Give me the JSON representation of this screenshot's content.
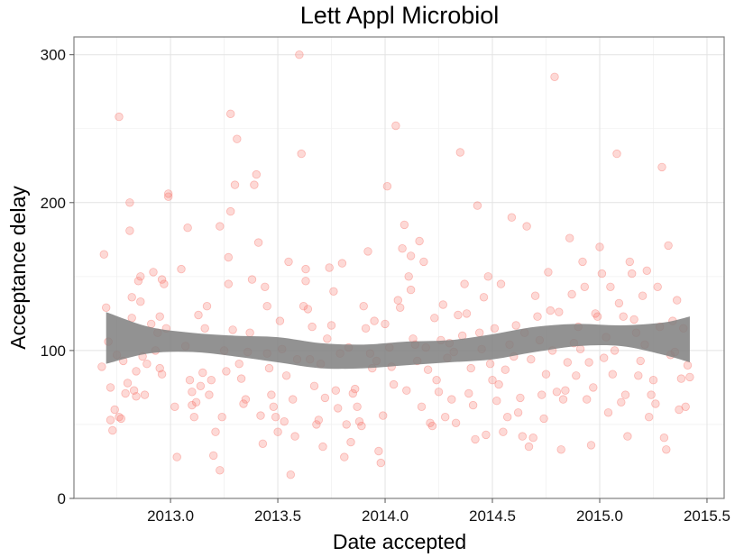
{
  "chart_data": {
    "type": "scatter",
    "title": "Lett Appl Microbiol",
    "xlabel": "Date accepted",
    "ylabel": "Acceptance delay",
    "xlim": [
      2012.55,
      2015.58
    ],
    "ylim": [
      0,
      312
    ],
    "x_ticks": [
      2013.0,
      2013.5,
      2014.0,
      2014.5,
      2015.0,
      2015.5
    ],
    "x_tick_labels": [
      "2013.0",
      "2013.5",
      "2014.0",
      "2014.5",
      "2015.0",
      "2015.5"
    ],
    "y_ticks": [
      0,
      100,
      200,
      300
    ],
    "y_tick_labels": [
      "0",
      "100",
      "200",
      "300"
    ],
    "grid": true,
    "point_color": "#F8766D",
    "band_color": "#7f7f7f",
    "smooth_band": {
      "x": [
        2012.7,
        2012.9,
        2013.1,
        2013.3,
        2013.5,
        2013.7,
        2013.9,
        2014.1,
        2014.3,
        2014.5,
        2014.7,
        2014.9,
        2015.1,
        2015.3,
        2015.42
      ],
      "lower": [
        91,
        98,
        99,
        96,
        92,
        88,
        88,
        90,
        92,
        94,
        99,
        103,
        103,
        97,
        92
      ],
      "upper": [
        126,
        116,
        112,
        110,
        109,
        105,
        104,
        106,
        107,
        111,
        116,
        118,
        117,
        119,
        123
      ]
    },
    "points": [
      [
        2012.68,
        89
      ],
      [
        2012.69,
        165
      ],
      [
        2012.7,
        129
      ],
      [
        2012.71,
        106
      ],
      [
        2012.72,
        75
      ],
      [
        2012.72,
        53
      ],
      [
        2012.73,
        46
      ],
      [
        2012.74,
        60
      ],
      [
        2012.75,
        97
      ],
      [
        2012.76,
        258
      ],
      [
        2012.76,
        55
      ],
      [
        2012.77,
        54
      ],
      [
        2012.78,
        93
      ],
      [
        2012.79,
        71
      ],
      [
        2012.8,
        78
      ],
      [
        2012.81,
        200
      ],
      [
        2012.81,
        181
      ],
      [
        2012.82,
        122
      ],
      [
        2012.82,
        136
      ],
      [
        2012.83,
        73
      ],
      [
        2012.84,
        86
      ],
      [
        2012.84,
        69
      ],
      [
        2012.85,
        147
      ],
      [
        2012.86,
        150
      ],
      [
        2012.86,
        133
      ],
      [
        2012.87,
        96
      ],
      [
        2012.88,
        70
      ],
      [
        2012.89,
        91
      ],
      [
        2012.91,
        118
      ],
      [
        2012.92,
        153
      ],
      [
        2012.93,
        100
      ],
      [
        2012.94,
        112
      ],
      [
        2012.95,
        123
      ],
      [
        2012.95,
        88
      ],
      [
        2012.96,
        84
      ],
      [
        2012.96,
        148
      ],
      [
        2012.97,
        145
      ],
      [
        2012.98,
        115
      ],
      [
        2012.99,
        206
      ],
      [
        2012.99,
        204
      ],
      [
        2013.02,
        62
      ],
      [
        2013.03,
        28
      ],
      [
        2013.05,
        155
      ],
      [
        2013.07,
        103
      ],
      [
        2013.08,
        183
      ],
      [
        2013.09,
        80
      ],
      [
        2013.1,
        63
      ],
      [
        2013.1,
        72
      ],
      [
        2013.11,
        55
      ],
      [
        2013.12,
        65
      ],
      [
        2013.13,
        124
      ],
      [
        2013.14,
        76
      ],
      [
        2013.15,
        85
      ],
      [
        2013.16,
        115
      ],
      [
        2013.17,
        130
      ],
      [
        2013.18,
        70
      ],
      [
        2013.19,
        80
      ],
      [
        2013.2,
        29
      ],
      [
        2013.21,
        45
      ],
      [
        2013.23,
        19
      ],
      [
        2013.23,
        184
      ],
      [
        2013.24,
        55
      ],
      [
        2013.25,
        100
      ],
      [
        2013.26,
        86
      ],
      [
        2013.27,
        163
      ],
      [
        2013.27,
        145
      ],
      [
        2013.28,
        260
      ],
      [
        2013.28,
        194
      ],
      [
        2013.29,
        114
      ],
      [
        2013.3,
        212
      ],
      [
        2013.31,
        243
      ],
      [
        2013.32,
        91
      ],
      [
        2013.33,
        81
      ],
      [
        2013.34,
        64
      ],
      [
        2013.35,
        67
      ],
      [
        2013.36,
        99
      ],
      [
        2013.37,
        112
      ],
      [
        2013.38,
        148
      ],
      [
        2013.39,
        212
      ],
      [
        2013.4,
        219
      ],
      [
        2013.41,
        173
      ],
      [
        2013.42,
        56
      ],
      [
        2013.43,
        37
      ],
      [
        2013.44,
        143
      ],
      [
        2013.45,
        130
      ],
      [
        2013.45,
        98
      ],
      [
        2013.46,
        88
      ],
      [
        2013.47,
        70
      ],
      [
        2013.48,
        62
      ],
      [
        2013.49,
        55
      ],
      [
        2013.5,
        45
      ],
      [
        2013.51,
        120
      ],
      [
        2013.52,
        101
      ],
      [
        2013.53,
        52
      ],
      [
        2013.54,
        83
      ],
      [
        2013.55,
        160
      ],
      [
        2013.56,
        16
      ],
      [
        2013.57,
        67
      ],
      [
        2013.58,
        42
      ],
      [
        2013.59,
        94
      ],
      [
        2013.6,
        300
      ],
      [
        2013.61,
        233
      ],
      [
        2013.62,
        130
      ],
      [
        2013.63,
        147
      ],
      [
        2013.63,
        155
      ],
      [
        2013.64,
        128
      ],
      [
        2013.65,
        94
      ],
      [
        2013.66,
        116
      ],
      [
        2013.67,
        76
      ],
      [
        2013.68,
        50
      ],
      [
        2013.69,
        53
      ],
      [
        2013.7,
        91
      ],
      [
        2013.71,
        35
      ],
      [
        2013.72,
        68
      ],
      [
        2013.73,
        108
      ],
      [
        2013.74,
        156
      ],
      [
        2013.75,
        117
      ],
      [
        2013.76,
        140
      ],
      [
        2013.77,
        73
      ],
      [
        2013.78,
        61
      ],
      [
        2013.79,
        98
      ],
      [
        2013.8,
        159
      ],
      [
        2013.81,
        28
      ],
      [
        2013.82,
        50
      ],
      [
        2013.83,
        102
      ],
      [
        2013.84,
        38
      ],
      [
        2013.85,
        71
      ],
      [
        2013.86,
        74
      ],
      [
        2013.87,
        62
      ],
      [
        2013.88,
        52
      ],
      [
        2013.89,
        49
      ],
      [
        2013.9,
        130
      ],
      [
        2013.91,
        115
      ],
      [
        2013.92,
        167
      ],
      [
        2013.93,
        98
      ],
      [
        2013.94,
        88
      ],
      [
        2013.95,
        120
      ],
      [
        2013.96,
        93
      ],
      [
        2013.97,
        32
      ],
      [
        2013.98,
        24
      ],
      [
        2013.99,
        56
      ],
      [
        2014.0,
        118
      ],
      [
        2014.01,
        211
      ],
      [
        2014.02,
        102
      ],
      [
        2014.03,
        89
      ],
      [
        2014.04,
        77
      ],
      [
        2014.05,
        252
      ],
      [
        2014.06,
        134
      ],
      [
        2014.07,
        129
      ],
      [
        2014.08,
        169
      ],
      [
        2014.09,
        185
      ],
      [
        2014.1,
        73
      ],
      [
        2014.11,
        150
      ],
      [
        2014.12,
        141
      ],
      [
        2014.12,
        164
      ],
      [
        2014.13,
        108
      ],
      [
        2014.14,
        104
      ],
      [
        2014.15,
        93
      ],
      [
        2014.16,
        174
      ],
      [
        2014.17,
        62
      ],
      [
        2014.18,
        160
      ],
      [
        2014.19,
        102
      ],
      [
        2014.2,
        87
      ],
      [
        2014.21,
        51
      ],
      [
        2014.22,
        49
      ],
      [
        2014.23,
        122
      ],
      [
        2014.24,
        80
      ],
      [
        2014.25,
        72
      ],
      [
        2014.26,
        107
      ],
      [
        2014.27,
        131
      ],
      [
        2014.28,
        55
      ],
      [
        2014.29,
        95
      ],
      [
        2014.3,
        105
      ],
      [
        2014.31,
        67
      ],
      [
        2014.32,
        99
      ],
      [
        2014.33,
        51
      ],
      [
        2014.34,
        124
      ],
      [
        2014.35,
        234
      ],
      [
        2014.36,
        110
      ],
      [
        2014.37,
        145
      ],
      [
        2014.38,
        125
      ],
      [
        2014.39,
        71
      ],
      [
        2014.4,
        88
      ],
      [
        2014.41,
        63
      ],
      [
        2014.42,
        40
      ],
      [
        2014.43,
        198
      ],
      [
        2014.44,
        112
      ],
      [
        2014.45,
        101
      ],
      [
        2014.46,
        136
      ],
      [
        2014.47,
        43
      ],
      [
        2014.48,
        150
      ],
      [
        2014.49,
        91
      ],
      [
        2014.5,
        80
      ],
      [
        2014.51,
        115
      ],
      [
        2014.52,
        66
      ],
      [
        2014.53,
        77
      ],
      [
        2014.54,
        145
      ],
      [
        2014.55,
        45
      ],
      [
        2014.56,
        87
      ],
      [
        2014.57,
        55
      ],
      [
        2014.58,
        104
      ],
      [
        2014.59,
        190
      ],
      [
        2014.6,
        96
      ],
      [
        2014.61,
        117
      ],
      [
        2014.62,
        58
      ],
      [
        2014.63,
        68
      ],
      [
        2014.64,
        42
      ],
      [
        2014.65,
        112
      ],
      [
        2014.66,
        184
      ],
      [
        2014.67,
        35
      ],
      [
        2014.68,
        94
      ],
      [
        2014.69,
        41
      ],
      [
        2014.7,
        137
      ],
      [
        2014.71,
        123
      ],
      [
        2014.72,
        107
      ],
      [
        2014.73,
        70
      ],
      [
        2014.74,
        54
      ],
      [
        2014.75,
        84
      ],
      [
        2014.76,
        153
      ],
      [
        2014.77,
        127
      ],
      [
        2014.78,
        100
      ],
      [
        2014.79,
        285
      ],
      [
        2014.8,
        72
      ],
      [
        2014.81,
        126
      ],
      [
        2014.82,
        33
      ],
      [
        2014.83,
        67
      ],
      [
        2014.84,
        73
      ],
      [
        2014.85,
        92
      ],
      [
        2014.86,
        176
      ],
      [
        2014.87,
        138
      ],
      [
        2014.88,
        105
      ],
      [
        2014.89,
        83
      ],
      [
        2014.9,
        116
      ],
      [
        2014.91,
        101
      ],
      [
        2014.92,
        160
      ],
      [
        2014.93,
        143
      ],
      [
        2014.94,
        67
      ],
      [
        2014.95,
        92
      ],
      [
        2014.96,
        36
      ],
      [
        2014.97,
        75
      ],
      [
        2014.98,
        125
      ],
      [
        2014.99,
        123
      ],
      [
        2015.0,
        170
      ],
      [
        2015.01,
        152
      ],
      [
        2015.02,
        95
      ],
      [
        2015.03,
        109
      ],
      [
        2015.04,
        58
      ],
      [
        2015.05,
        143
      ],
      [
        2015.06,
        84
      ],
      [
        2015.07,
        100
      ],
      [
        2015.08,
        233
      ],
      [
        2015.09,
        132
      ],
      [
        2015.1,
        65
      ],
      [
        2015.11,
        123
      ],
      [
        2015.12,
        70
      ],
      [
        2015.13,
        42
      ],
      [
        2015.14,
        160
      ],
      [
        2015.15,
        152
      ],
      [
        2015.16,
        121
      ],
      [
        2015.17,
        112
      ],
      [
        2015.18,
        83
      ],
      [
        2015.19,
        93
      ],
      [
        2015.2,
        137
      ],
      [
        2015.21,
        104
      ],
      [
        2015.22,
        154
      ],
      [
        2015.23,
        55
      ],
      [
        2015.24,
        70
      ],
      [
        2015.25,
        80
      ],
      [
        2015.26,
        64
      ],
      [
        2015.27,
        143
      ],
      [
        2015.28,
        116
      ],
      [
        2015.29,
        224
      ],
      [
        2015.3,
        41
      ],
      [
        2015.31,
        33
      ],
      [
        2015.32,
        171
      ],
      [
        2015.33,
        97
      ],
      [
        2015.34,
        120
      ],
      [
        2015.35,
        99
      ],
      [
        2015.36,
        134
      ],
      [
        2015.37,
        60
      ],
      [
        2015.38,
        81
      ],
      [
        2015.39,
        115
      ],
      [
        2015.4,
        62
      ],
      [
        2015.41,
        90
      ],
      [
        2015.42,
        82
      ]
    ]
  }
}
